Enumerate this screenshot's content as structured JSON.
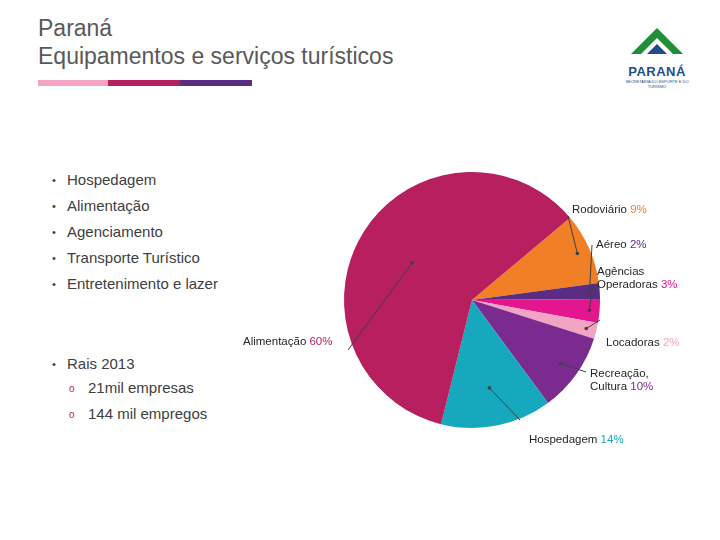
{
  "header": {
    "title": [
      "Paraná",
      "Equipamentos e serviços turísticos"
    ]
  },
  "logo": {
    "title": "PARANÁ",
    "subtitle": "SECRETARIA DO ESPORTE E DO TURISMO"
  },
  "bullets": [
    "Hospedagem",
    "Alimentação",
    "Agenciamento",
    "Transporte Turístico",
    "Entretenimento e lazer"
  ],
  "rais": {
    "title": "Rais 2013",
    "items": [
      "21mil empresas",
      "144 mil empregos"
    ]
  },
  "chart_data": {
    "type": "pie",
    "categories": [
      "Rodoviário",
      "Aéreo",
      "Agências Operadoras",
      "Locadoras",
      "Recreação, Cultura",
      "Hospedagem",
      "Alimentação"
    ],
    "values": [
      9,
      2,
      3,
      2,
      10,
      14,
      60
    ],
    "value_labels": [
      "9%",
      "2%",
      "3%",
      "2%",
      "10%",
      "14%",
      "60%"
    ],
    "colors": [
      "#f07f26",
      "#5a2d82",
      "#e4168e",
      "#f3a3c3",
      "#7b2a90",
      "#16a9bd",
      "#b71f5f"
    ],
    "data_labels": true
  }
}
